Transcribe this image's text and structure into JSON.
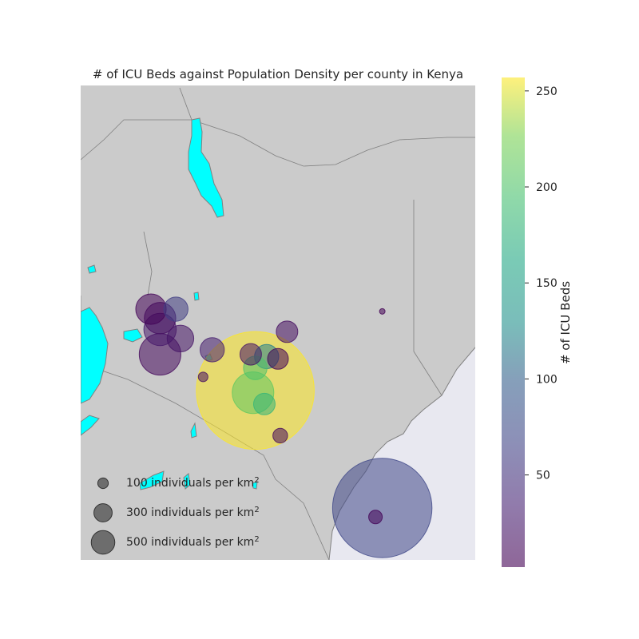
{
  "chart_data": {
    "type": "scatter",
    "title": "# of ICU Beds against Population Density per county in Kenya",
    "map": {
      "land_color": "#cbcbcb",
      "water_color": "#00ffff",
      "ocean_color": "#e8e8f0",
      "border_color": "#808080"
    },
    "colorbar": {
      "label": "# of ICU Beds",
      "colormap": "viridis",
      "vmin": 2,
      "vmax": 257,
      "ticks": [
        50,
        100,
        150,
        200,
        250
      ]
    },
    "size_legend": [
      {
        "density": 100,
        "label_prefix": "100 individuals per km",
        "sup": "2"
      },
      {
        "density": 300,
        "label_prefix": "300 individuals per km",
        "sup": "2"
      },
      {
        "density": 500,
        "label_prefix": "500 individuals per km",
        "sup": "2"
      }
    ],
    "points": [
      {
        "lon": 34.75,
        "lat": 0.55,
        "icu_beds": 5,
        "density": 300
      },
      {
        "lon": 34.95,
        "lat": 0.35,
        "icu_beds": 15,
        "density": 320
      },
      {
        "lon": 35.3,
        "lat": 0.55,
        "icu_beds": 60,
        "density": 190
      },
      {
        "lon": 34.95,
        "lat": 0.1,
        "icu_beds": 25,
        "density": 340
      },
      {
        "lon": 35.4,
        "lat": -0.1,
        "icu_beds": 20,
        "density": 230
      },
      {
        "lon": 34.95,
        "lat": -0.45,
        "icu_beds": 10,
        "density": 560
      },
      {
        "lon": 36.1,
        "lat": -0.35,
        "icu_beds": 30,
        "density": 190
      },
      {
        "lon": 36.95,
        "lat": -0.45,
        "icu_beds": 20,
        "density": 150
      },
      {
        "lon": 37.3,
        "lat": -0.5,
        "icu_beds": 120,
        "density": 190
      },
      {
        "lon": 37.05,
        "lat": -0.75,
        "icu_beds": 200,
        "density": 180
      },
      {
        "lon": 37.05,
        "lat": -1.25,
        "icu_beds": 257,
        "density": 4500
      },
      {
        "lon": 37.0,
        "lat": -1.3,
        "icu_beds": 210,
        "density": 560
      },
      {
        "lon": 37.25,
        "lat": -1.55,
        "icu_beds": 180,
        "density": 150
      },
      {
        "lon": 37.55,
        "lat": -0.55,
        "icu_beds": 5,
        "density": 140
      },
      {
        "lon": 37.75,
        "lat": 0.05,
        "icu_beds": 15,
        "density": 150
      },
      {
        "lon": 39.85,
        "lat": 0.5,
        "icu_beds": 3,
        "density": 10
      },
      {
        "lon": 35.9,
        "lat": -0.95,
        "icu_beds": 15,
        "density": 30
      },
      {
        "lon": 37.6,
        "lat": -2.25,
        "icu_beds": 10,
        "density": 70
      },
      {
        "lon": 39.7,
        "lat": -4.05,
        "icu_beds": 5,
        "density": 60
      },
      {
        "lon": 39.85,
        "lat": -3.85,
        "icu_beds": 70,
        "density": 3200
      }
    ]
  }
}
